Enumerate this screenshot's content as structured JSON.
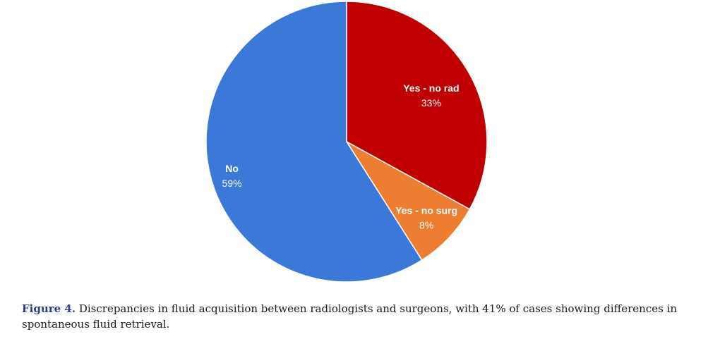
{
  "chart_data": {
    "type": "pie",
    "slices": [
      {
        "label": "Yes - no rad",
        "percent_label": "33%",
        "value": 33,
        "color": "#c00000"
      },
      {
        "label": "Yes - no surg",
        "percent_label": "8%",
        "value": 8,
        "color": "#ed7d31"
      },
      {
        "label": "No",
        "percent_label": "59%",
        "value": 59,
        "color": "#3c78d8"
      }
    ],
    "start_angle_deg": 0,
    "direction": "clockwise",
    "legend": "none"
  },
  "caption": {
    "figure_label": "Figure 4.",
    "text": " Discrepancies in fluid acquisition between radiologists and surgeons, with 41% of cases showing differences in spontaneous fluid retrieval."
  }
}
